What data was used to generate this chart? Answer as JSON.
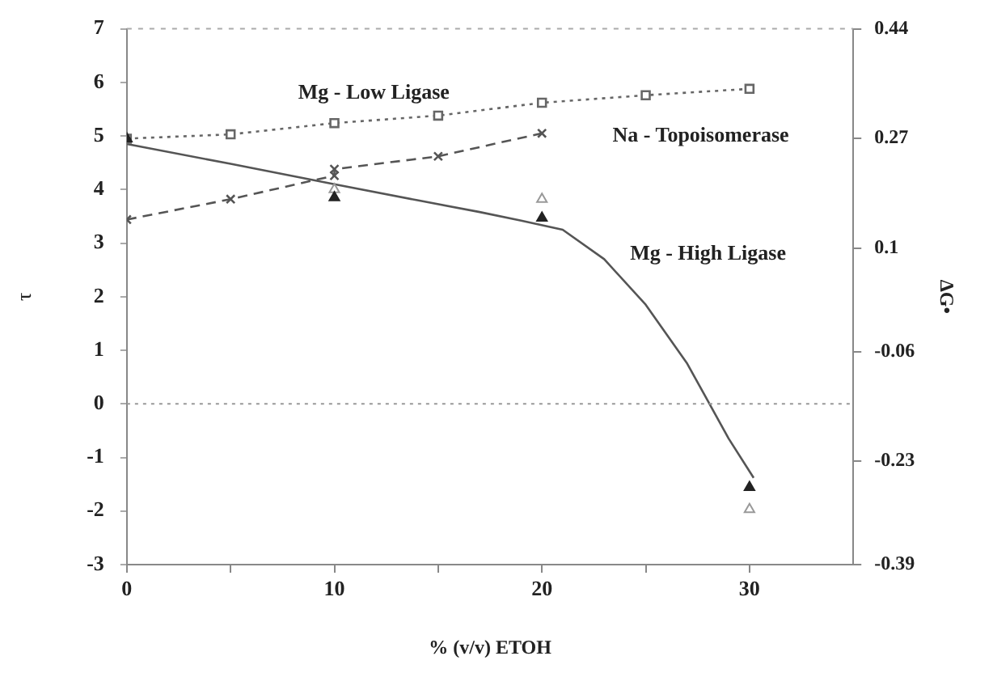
{
  "chart_data": {
    "type": "scatter",
    "xlabel": "% (v/v) ETOH",
    "ylabel": "τ",
    "y2label": "ΔG•",
    "xlim": [
      0,
      35
    ],
    "xticks": [
      0,
      {
        "value": 5,
        "label": null
      },
      10,
      {
        "value": 15,
        "label": null
      },
      20,
      {
        "value": 25,
        "label": null
      },
      30
    ],
    "ylim": [
      -3,
      7
    ],
    "yticks": [
      -3,
      -2,
      -1,
      0,
      1,
      2,
      3,
      4,
      5,
      6,
      7
    ],
    "y2lim": [
      -0.39,
      0.44
    ],
    "y2ticks": [
      -0.39,
      -0.23,
      -0.06,
      0.1,
      0.27,
      0.44
    ],
    "grid": false,
    "legend": false,
    "ref_lines": [
      {
        "axis": "y",
        "value": 0,
        "line_style": "dotted",
        "color": "#999999"
      }
    ],
    "annotations": [
      "Mg - Low Ligase",
      "Na - Topoisomerase",
      "Mg - High Ligase"
    ],
    "series": [
      {
        "type": "line",
        "color": "#666666",
        "line_style": "dotted",
        "marker": "square",
        "x": [
          0,
          5,
          10,
          15,
          20,
          25,
          30
        ],
        "values": [
          4.95,
          5.03,
          5.24,
          5.38,
          5.62,
          5.76,
          5.88
        ]
      },
      {
        "type": "line",
        "color": "#555555",
        "line_style": "dashed",
        "marker": "cross",
        "x": [
          0,
          5,
          10,
          10,
          15,
          20
        ],
        "values": [
          3.44,
          3.82,
          4.26,
          4.38,
          4.62,
          5.05
        ]
      },
      {
        "type": "line",
        "color": "#555555",
        "line_style": "solid",
        "marker": "none",
        "x": [
          0,
          5,
          10,
          14,
          17,
          19,
          21,
          23,
          25,
          27,
          28,
          29,
          30.2
        ],
        "values": [
          4.85,
          4.48,
          4.1,
          3.8,
          3.58,
          3.42,
          3.25,
          2.7,
          1.85,
          0.75,
          0.05,
          -0.65,
          -1.38
        ]
      },
      {
        "type": "scatter",
        "color": "#222222",
        "marker": "triangle",
        "x": [
          0,
          10,
          20,
          30
        ],
        "values": [
          4.95,
          3.85,
          3.47,
          -1.56
        ]
      },
      {
        "type": "scatter",
        "color": "#999999",
        "marker": "triangle",
        "x": [
          10,
          20,
          30
        ],
        "values": [
          4.0,
          3.82,
          -1.97
        ]
      }
    ]
  }
}
